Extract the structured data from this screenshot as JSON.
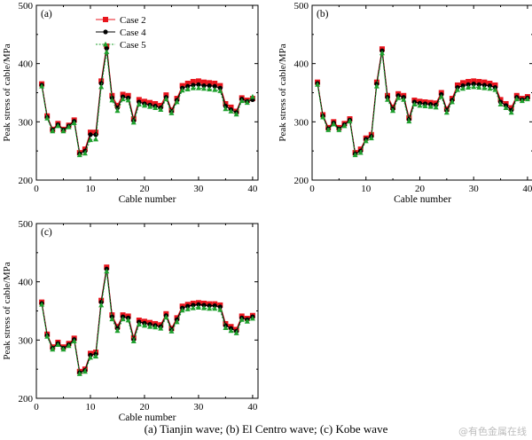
{
  "chart_data": [
    {
      "type": "line",
      "panel_label": "(a)",
      "xlabel": "Cable number",
      "ylabel": "Peak stress of cable/MPa",
      "xlim": [
        0,
        41
      ],
      "ylim": [
        200,
        500
      ],
      "x_ticks": [
        0,
        10,
        20,
        30,
        40
      ],
      "y_ticks": [
        200,
        300,
        400,
        500
      ],
      "legend": "top-center",
      "x": [
        1,
        2,
        3,
        4,
        5,
        6,
        7,
        8,
        9,
        10,
        11,
        12,
        13,
        14,
        15,
        16,
        17,
        18,
        19,
        20,
        21,
        22,
        23,
        24,
        25,
        26,
        27,
        28,
        29,
        30,
        31,
        32,
        33,
        34,
        35,
        36,
        37,
        38,
        39,
        40
      ],
      "series": [
        {
          "name": "Case 2",
          "values": [
            365,
            310,
            287,
            297,
            287,
            294,
            303,
            247,
            253,
            282,
            282,
            370,
            430,
            345,
            328,
            347,
            345,
            305,
            338,
            335,
            333,
            331,
            328,
            346,
            320,
            340,
            362,
            366,
            369,
            370,
            368,
            367,
            366,
            362,
            331,
            325,
            318,
            341,
            337,
            340
          ]
        },
        {
          "name": "Case 4",
          "values": [
            363,
            308,
            286,
            295,
            286,
            293,
            301,
            245,
            250,
            278,
            278,
            366,
            426,
            341,
            324,
            343,
            341,
            302,
            334,
            331,
            329,
            327,
            324,
            342,
            318,
            337,
            358,
            361,
            363,
            364,
            362,
            362,
            361,
            358,
            327,
            321,
            316,
            339,
            335,
            338
          ]
        },
        {
          "name": "Case 5",
          "values": [
            361,
            306,
            284,
            293,
            284,
            291,
            298,
            243,
            246,
            269,
            270,
            360,
            420,
            337,
            319,
            339,
            337,
            299,
            330,
            328,
            326,
            324,
            321,
            339,
            315,
            334,
            354,
            356,
            358,
            358,
            357,
            356,
            355,
            353,
            322,
            318,
            313,
            336,
            333,
            343
          ]
        }
      ]
    },
    {
      "type": "line",
      "panel_label": "(b)",
      "xlabel": "Cable number",
      "ylabel": "Peak stress of cable/MPa",
      "xlim": [
        0,
        41
      ],
      "ylim": [
        200,
        500
      ],
      "x_ticks": [
        0,
        10,
        20,
        30,
        40
      ],
      "y_ticks": [
        200,
        300,
        400,
        500
      ],
      "x": [
        1,
        2,
        3,
        4,
        5,
        6,
        7,
        8,
        9,
        10,
        11,
        12,
        13,
        14,
        15,
        16,
        17,
        18,
        19,
        20,
        21,
        22,
        23,
        24,
        25,
        26,
        27,
        28,
        29,
        30,
        31,
        32,
        33,
        34,
        35,
        36,
        37,
        38,
        39,
        40
      ],
      "series": [
        {
          "name": "Case 2",
          "values": [
            368,
            312,
            290,
            300,
            290,
            297,
            305,
            247,
            253,
            272,
            278,
            368,
            425,
            345,
            325,
            348,
            345,
            307,
            337,
            335,
            334,
            333,
            332,
            350,
            322,
            340,
            363,
            367,
            369,
            370,
            369,
            368,
            366,
            363,
            338,
            331,
            324,
            345,
            340,
            343
          ]
        },
        {
          "name": "Case 4",
          "values": [
            366,
            310,
            288,
            298,
            288,
            295,
            303,
            245,
            250,
            270,
            275,
            365,
            422,
            342,
            322,
            345,
            342,
            304,
            334,
            332,
            331,
            330,
            329,
            347,
            320,
            337,
            359,
            362,
            364,
            365,
            364,
            363,
            362,
            359,
            334,
            328,
            320,
            342,
            338,
            341
          ]
        },
        {
          "name": "Case 5",
          "values": [
            364,
            308,
            286,
            296,
            286,
            293,
            301,
            243,
            247,
            267,
            272,
            361,
            418,
            338,
            319,
            341,
            338,
            301,
            330,
            328,
            327,
            326,
            325,
            343,
            316,
            334,
            355,
            357,
            359,
            360,
            359,
            358,
            357,
            355,
            330,
            324,
            316,
            339,
            336,
            339
          ]
        }
      ]
    },
    {
      "type": "line",
      "panel_label": "(c)",
      "xlabel": "Cable number",
      "ylabel": "Peak stress of cable/MPa",
      "xlim": [
        0,
        41
      ],
      "ylim": [
        200,
        500
      ],
      "x_ticks": [
        0,
        10,
        20,
        30,
        40
      ],
      "y_ticks": [
        200,
        300,
        400,
        500
      ],
      "x": [
        1,
        2,
        3,
        4,
        5,
        6,
        7,
        8,
        9,
        10,
        11,
        12,
        13,
        14,
        15,
        16,
        17,
        18,
        19,
        20,
        21,
        22,
        23,
        24,
        25,
        26,
        27,
        28,
        29,
        30,
        31,
        32,
        33,
        34,
        35,
        36,
        37,
        38,
        39,
        40
      ],
      "series": [
        {
          "name": "Case 2",
          "values": [
            365,
            310,
            288,
            296,
            288,
            294,
            303,
            246,
            250,
            277,
            279,
            368,
            425,
            343,
            323,
            343,
            341,
            304,
            334,
            332,
            330,
            328,
            326,
            345,
            320,
            338,
            358,
            361,
            363,
            364,
            363,
            362,
            362,
            360,
            328,
            323,
            318,
            341,
            337,
            342
          ]
        },
        {
          "name": "Case 4",
          "values": [
            363,
            308,
            286,
            294,
            286,
            292,
            301,
            244,
            248,
            274,
            276,
            365,
            422,
            340,
            320,
            340,
            338,
            301,
            331,
            329,
            327,
            325,
            323,
            342,
            318,
            335,
            355,
            358,
            360,
            361,
            360,
            359,
            359,
            357,
            325,
            320,
            315,
            338,
            335,
            340
          ]
        },
        {
          "name": "Case 5",
          "values": [
            361,
            306,
            284,
            292,
            284,
            290,
            298,
            242,
            246,
            270,
            272,
            360,
            418,
            336,
            316,
            336,
            334,
            298,
            327,
            325,
            323,
            322,
            320,
            339,
            315,
            331,
            351,
            353,
            355,
            356,
            355,
            354,
            354,
            352,
            321,
            316,
            312,
            335,
            332,
            337
          ]
        }
      ]
    }
  ],
  "caption": "(a)   Tianjin  wave;  (b)   El   Centro   wave; (c) Kobe wave",
  "watermark": "@有色金属在线",
  "styles": {
    "series_colors": [
      "#e8141c",
      "#000000",
      "#1fa02e"
    ],
    "series_markers": [
      "square",
      "circle",
      "triangle"
    ],
    "series_dash": [
      "solid",
      "solid",
      "dotted"
    ]
  }
}
